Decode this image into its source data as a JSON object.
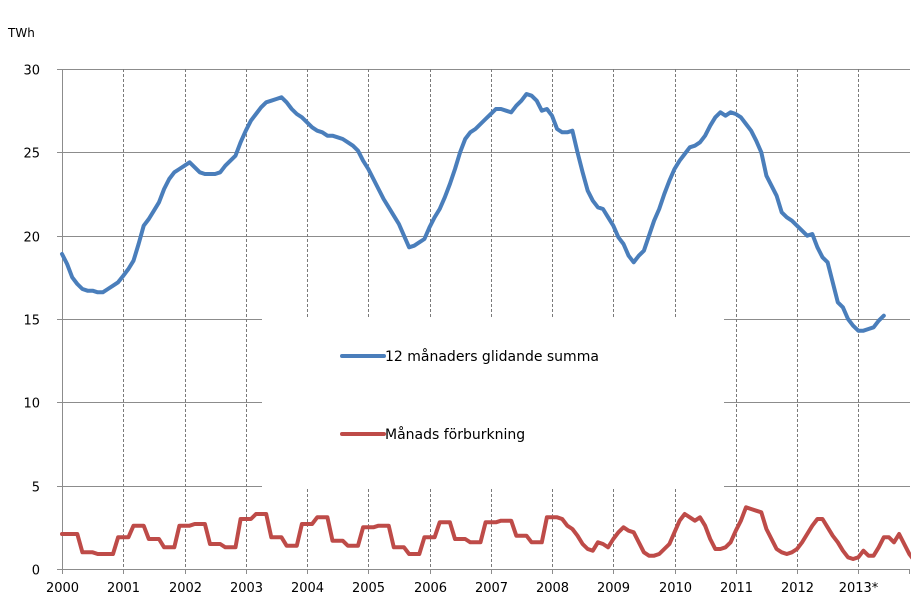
{
  "chart_data": {
    "type": "line",
    "y_unit": "TWh",
    "ylim": [
      0,
      30
    ],
    "yticks": [
      "0",
      "5",
      "10",
      "15",
      "20",
      "25",
      "30"
    ],
    "x_tick_labels": [
      "2000",
      "2001",
      "2002",
      "2003",
      "2004",
      "2005",
      "2006",
      "2007",
      "2008",
      "2009",
      "2010",
      "2011",
      "2012",
      "2013*"
    ],
    "grid": {
      "horizontal": true,
      "vertical_dashed": true
    },
    "legend_position": "center",
    "series": [
      {
        "name": "12 månaders glidande summa",
        "color": "#4a7ebb",
        "values": [
          18.9,
          18.3,
          17.5,
          17.1,
          16.8,
          16.7,
          16.7,
          16.6,
          16.6,
          16.8,
          17.0,
          17.2,
          17.6,
          18.0,
          18.5,
          19.5,
          20.6,
          21.0,
          21.5,
          22.0,
          22.8,
          23.4,
          23.8,
          24.0,
          24.2,
          24.4,
          24.1,
          23.8,
          23.7,
          23.7,
          23.7,
          23.8,
          24.2,
          24.5,
          24.8,
          25.6,
          26.3,
          26.9,
          27.3,
          27.7,
          28.0,
          28.1,
          28.2,
          28.3,
          28.0,
          27.6,
          27.3,
          27.1,
          26.8,
          26.5,
          26.3,
          26.2,
          26.0,
          26.0,
          25.9,
          25.8,
          25.6,
          25.4,
          25.1,
          24.5,
          24.0,
          23.4,
          22.8,
          22.2,
          21.7,
          21.2,
          20.7,
          20.0,
          19.3,
          19.4,
          19.6,
          19.8,
          20.5,
          21.1,
          21.6,
          22.3,
          23.1,
          24.0,
          25.0,
          25.8,
          26.2,
          26.4,
          26.7,
          27.0,
          27.3,
          27.6,
          27.6,
          27.5,
          27.4,
          27.8,
          28.1,
          28.5,
          28.4,
          28.1,
          27.5,
          27.6,
          27.2,
          26.4,
          26.2,
          26.2,
          26.3,
          25.0,
          23.8,
          22.7,
          22.1,
          21.7,
          21.6,
          21.1,
          20.6,
          19.9,
          19.5,
          18.8,
          18.4,
          18.8,
          19.1,
          20.0,
          20.9,
          21.6,
          22.5,
          23.3,
          24.0,
          24.5,
          24.9,
          25.3,
          25.4,
          25.6,
          26.0,
          26.6,
          27.1,
          27.4,
          27.2,
          27.4,
          27.3,
          27.1,
          26.7,
          26.3,
          25.7,
          25.0,
          23.6,
          23.0,
          22.4,
          21.4,
          21.1,
          20.9,
          20.6,
          20.3,
          20.0,
          20.1,
          19.3,
          18.7,
          18.4,
          17.2,
          16.0,
          15.7,
          15.0,
          14.6,
          14.3,
          14.3,
          14.4,
          14.5,
          14.9,
          15.2
        ]
      },
      {
        "name": "Månads förburkning",
        "color": "#be4b48",
        "values": [
          2.1,
          2.1,
          2.1,
          2.1,
          1.0,
          1.0,
          1.0,
          0.9,
          0.9,
          0.9,
          0.9,
          1.9,
          1.9,
          1.9,
          2.6,
          2.6,
          2.6,
          1.8,
          1.8,
          1.8,
          1.3,
          1.3,
          1.3,
          2.6,
          2.6,
          2.6,
          2.7,
          2.7,
          2.7,
          1.5,
          1.5,
          1.5,
          1.3,
          1.3,
          1.3,
          3.0,
          3.0,
          3.0,
          3.3,
          3.3,
          3.3,
          1.9,
          1.9,
          1.9,
          1.4,
          1.4,
          1.4,
          2.7,
          2.7,
          2.7,
          3.1,
          3.1,
          3.1,
          1.7,
          1.7,
          1.7,
          1.4,
          1.4,
          1.4,
          2.5,
          2.5,
          2.5,
          2.6,
          2.6,
          2.6,
          1.3,
          1.3,
          1.3,
          0.9,
          0.9,
          0.9,
          1.9,
          1.9,
          1.9,
          2.8,
          2.8,
          2.8,
          1.8,
          1.8,
          1.8,
          1.6,
          1.6,
          1.6,
          2.8,
          2.8,
          2.8,
          2.9,
          2.9,
          2.9,
          2.0,
          2.0,
          2.0,
          1.6,
          1.6,
          1.6,
          3.1,
          3.1,
          3.1,
          3.0,
          2.6,
          2.4,
          2.0,
          1.5,
          1.2,
          1.1,
          1.6,
          1.5,
          1.3,
          1.8,
          2.2,
          2.5,
          2.3,
          2.2,
          1.6,
          1.0,
          0.8,
          0.8,
          0.9,
          1.2,
          1.5,
          2.2,
          2.9,
          3.3,
          3.1,
          2.9,
          3.1,
          2.6,
          1.8,
          1.2,
          1.2,
          1.3,
          1.6,
          2.3,
          2.9,
          3.7,
          3.6,
          3.5,
          3.4,
          2.4,
          1.8,
          1.2,
          1.0,
          0.9,
          1.0,
          1.2,
          1.6,
          2.1,
          2.6,
          3.0,
          3.0,
          2.5,
          2.0,
          1.6,
          1.1,
          0.7,
          0.6,
          0.7,
          1.1,
          0.8,
          0.8,
          1.3,
          1.9,
          1.9,
          1.6,
          2.1,
          1.5,
          0.9,
          0.5,
          0.6,
          0.9,
          1.2,
          1.2,
          1.5
        ]
      }
    ]
  }
}
